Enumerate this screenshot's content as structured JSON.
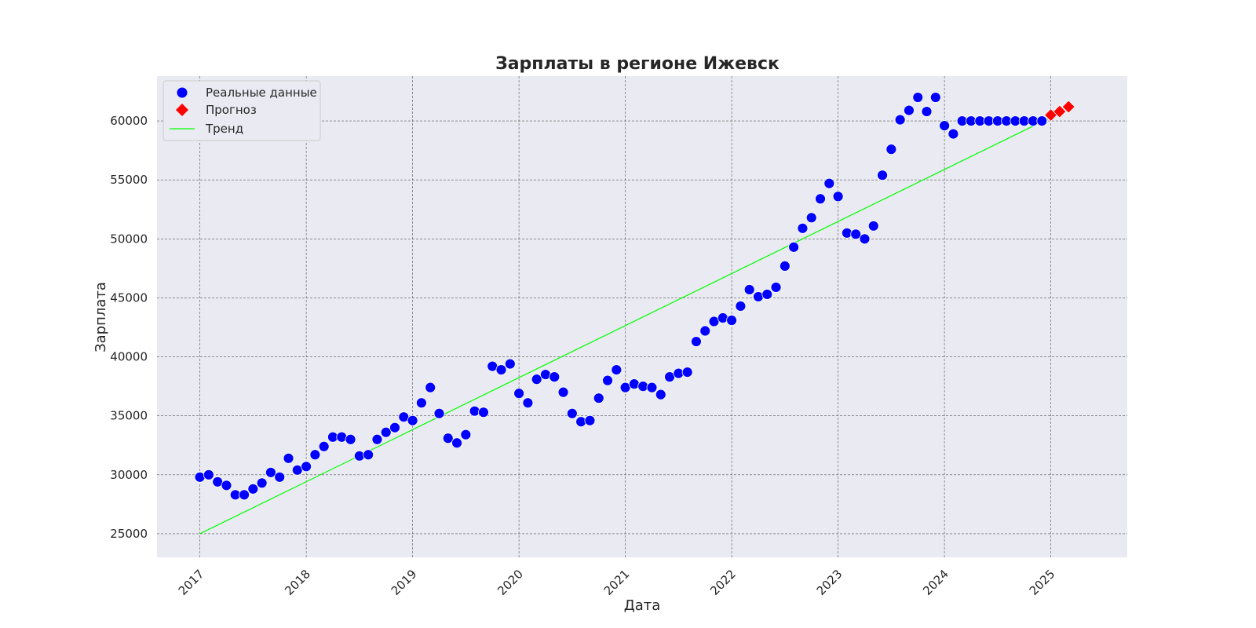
{
  "chart_data": {
    "type": "scatter",
    "title": "Зарплаты в регионе Ижевск",
    "xlabel": "Дата",
    "ylabel": "Зарплата",
    "x_ticks": [
      "2017",
      "2018",
      "2019",
      "2020",
      "2021",
      "2022",
      "2023",
      "2024",
      "2025"
    ],
    "y_ticks": [
      "25000",
      "30000",
      "35000",
      "40000",
      "45000",
      "50000",
      "55000",
      "60000"
    ],
    "xlim": [
      "2016-08-06",
      "2025-09-20"
    ],
    "ylim": [
      23000,
      63800
    ],
    "grid": true,
    "legend_position": "top-left",
    "background_color": "#eaeaf2",
    "series": [
      {
        "name": "Реальные данные",
        "marker": "circle",
        "color": "#0000ff",
        "x": [
          "2017-01",
          "2017-02",
          "2017-03",
          "2017-04",
          "2017-05",
          "2017-06",
          "2017-07",
          "2017-08",
          "2017-09",
          "2017-10",
          "2017-11",
          "2017-12",
          "2018-01",
          "2018-02",
          "2018-03",
          "2018-04",
          "2018-05",
          "2018-06",
          "2018-07",
          "2018-08",
          "2018-09",
          "2018-10",
          "2018-11",
          "2018-12",
          "2019-01",
          "2019-02",
          "2019-03",
          "2019-04",
          "2019-05",
          "2019-06",
          "2019-07",
          "2019-08",
          "2019-09",
          "2019-10",
          "2019-11",
          "2019-12",
          "2020-01",
          "2020-02",
          "2020-03",
          "2020-04",
          "2020-05",
          "2020-06",
          "2020-07",
          "2020-08",
          "2020-09",
          "2020-10",
          "2020-11",
          "2020-12",
          "2021-01",
          "2021-02",
          "2021-03",
          "2021-04",
          "2021-05",
          "2021-06",
          "2021-07",
          "2021-08",
          "2021-09",
          "2021-10",
          "2021-11",
          "2021-12",
          "2022-01",
          "2022-02",
          "2022-03",
          "2022-04",
          "2022-05",
          "2022-06",
          "2022-07",
          "2022-08",
          "2022-09",
          "2022-10",
          "2022-11",
          "2022-12",
          "2023-01",
          "2023-02",
          "2023-03",
          "2023-04",
          "2023-05",
          "2023-06",
          "2023-07",
          "2023-08",
          "2023-09",
          "2023-10",
          "2023-11",
          "2023-12",
          "2024-01",
          "2024-02",
          "2024-03",
          "2024-04",
          "2024-05",
          "2024-06",
          "2024-07",
          "2024-08",
          "2024-09",
          "2024-10",
          "2024-11",
          "2024-12"
        ],
        "values": [
          29800,
          30000,
          29400,
          29100,
          28300,
          28300,
          28800,
          29300,
          30200,
          29800,
          31400,
          30400,
          30700,
          31700,
          32400,
          33200,
          33200,
          33000,
          31600,
          31700,
          33000,
          33600,
          34000,
          34900,
          34600,
          36100,
          37400,
          35200,
          33100,
          32700,
          33400,
          35400,
          35300,
          39200,
          38900,
          39400,
          36900,
          36100,
          38100,
          38500,
          38300,
          37000,
          35200,
          34500,
          34600,
          36500,
          38000,
          38900,
          37400,
          37700,
          37500,
          37400,
          36800,
          38300,
          38600,
          38700,
          41300,
          42200,
          43000,
          43300,
          43100,
          44300,
          45700,
          45100,
          45300,
          45900,
          47700,
          49300,
          50900,
          51800,
          53400,
          54700,
          53600,
          50500,
          50400,
          50000,
          51100,
          55400,
          57600,
          60100,
          60900,
          62000,
          60800,
          62000,
          59600,
          58900,
          60000,
          60000,
          60000,
          60000,
          60000,
          60000,
          60000,
          60000,
          60000,
          60000
        ]
      },
      {
        "name": "Прогноз",
        "marker": "diamond",
        "color": "#ff0000",
        "x": [
          "2025-01",
          "2025-02",
          "2025-03"
        ],
        "values": [
          60500,
          60800,
          61200
        ]
      },
      {
        "name": "Тренд",
        "marker": "line",
        "color": "#00ff00",
        "x": [
          "2017-01",
          "2025-01"
        ],
        "values": [
          25000,
          60300
        ]
      }
    ]
  }
}
